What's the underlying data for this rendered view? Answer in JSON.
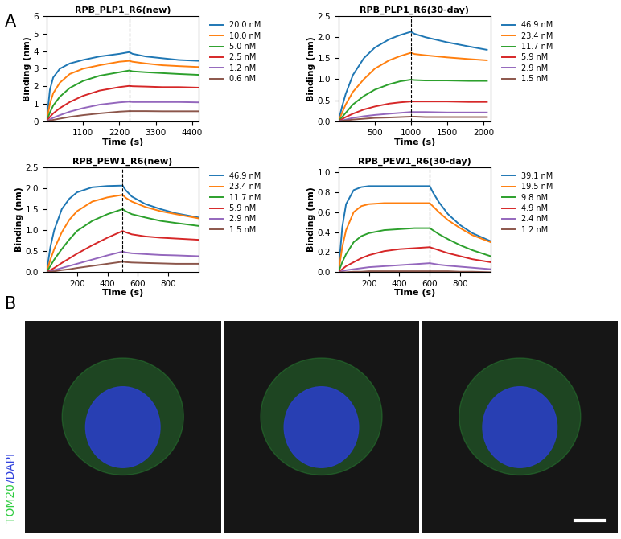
{
  "panel_labels": [
    "A",
    "B"
  ],
  "chart_data": [
    {
      "type": "line",
      "title": "RPB_PLP1_R6(new)",
      "xlabel": "Time (s)",
      "ylabel": "Binding (nm)",
      "xlim": [
        0,
        4600
      ],
      "xticks": [
        1100,
        2200,
        3300,
        4400
      ],
      "ylim": [
        0,
        6
      ],
      "yticks": [
        0,
        1,
        2,
        3,
        4,
        5,
        6
      ],
      "vline_x": 2500,
      "legend": "upper left",
      "x": [
        0,
        100,
        200,
        400,
        700,
        1100,
        1600,
        2200,
        2500,
        2600,
        3000,
        3500,
        4000,
        4600
      ],
      "series": [
        {
          "name": "20.0 nM",
          "color": "#1f77b4",
          "values": [
            0,
            1.8,
            2.5,
            3.0,
            3.3,
            3.5,
            3.7,
            3.85,
            3.95,
            3.85,
            3.7,
            3.6,
            3.5,
            3.45
          ]
        },
        {
          "name": "10.0 nM",
          "color": "#ff7f0e",
          "values": [
            0,
            1.0,
            1.6,
            2.2,
            2.7,
            3.0,
            3.2,
            3.4,
            3.45,
            3.4,
            3.3,
            3.2,
            3.15,
            3.1
          ]
        },
        {
          "name": "5.0 nM",
          "color": "#2ca02c",
          "values": [
            0,
            0.5,
            0.9,
            1.4,
            1.9,
            2.3,
            2.6,
            2.8,
            2.9,
            2.85,
            2.8,
            2.75,
            2.7,
            2.65
          ]
        },
        {
          "name": "2.5 nM",
          "color": "#d62728",
          "values": [
            0,
            0.25,
            0.45,
            0.75,
            1.1,
            1.45,
            1.75,
            1.95,
            2.02,
            2.0,
            1.98,
            1.95,
            1.95,
            1.92
          ]
        },
        {
          "name": "1.2 nM",
          "color": "#9467bd",
          "values": [
            0,
            0.1,
            0.2,
            0.35,
            0.55,
            0.75,
            0.95,
            1.08,
            1.12,
            1.1,
            1.1,
            1.1,
            1.1,
            1.08
          ]
        },
        {
          "name": "0.6 nM",
          "color": "#8c564b",
          "values": [
            0,
            0.04,
            0.08,
            0.15,
            0.25,
            0.35,
            0.45,
            0.55,
            0.58,
            0.58,
            0.58,
            0.57,
            0.57,
            0.57
          ]
        }
      ]
    },
    {
      "type": "line",
      "title": "RPB_PLP1_R6(30-day)",
      "xlabel": "Time (s)",
      "ylabel": "Binding (nm)",
      "xlim": [
        0,
        2100
      ],
      "xticks": [
        500,
        1000,
        1500,
        2000
      ],
      "ylim": [
        0,
        2.5
      ],
      "yticks": [
        {
          "value": 0,
          "label": "0.0"
        },
        0.5,
        {
          "value": 1,
          "label": "1.0"
        },
        1.5,
        {
          "value": 2,
          "label": "2.0"
        },
        2.5
      ],
      "vline_x": 1000,
      "legend": "upper left",
      "x": [
        0,
        50,
        100,
        200,
        350,
        500,
        700,
        850,
        1000,
        1050,
        1200,
        1500,
        1800,
        2050
      ],
      "series": [
        {
          "name": "46.9 nM",
          "color": "#1f77b4",
          "values": [
            0,
            0.35,
            0.65,
            1.1,
            1.5,
            1.75,
            1.95,
            2.05,
            2.13,
            2.08,
            2.0,
            1.88,
            1.78,
            1.7
          ]
        },
        {
          "name": "23.4 nM",
          "color": "#ff7f0e",
          "values": [
            0,
            0.2,
            0.4,
            0.7,
            1.0,
            1.25,
            1.45,
            1.55,
            1.63,
            1.6,
            1.57,
            1.52,
            1.48,
            1.45
          ]
        },
        {
          "name": "11.7 nM",
          "color": "#2ca02c",
          "values": [
            0,
            0.1,
            0.2,
            0.4,
            0.6,
            0.75,
            0.88,
            0.95,
            0.99,
            0.98,
            0.97,
            0.97,
            0.96,
            0.96
          ]
        },
        {
          "name": "5.9 nM",
          "color": "#d62728",
          "values": [
            0,
            0.05,
            0.1,
            0.18,
            0.28,
            0.35,
            0.42,
            0.45,
            0.47,
            0.47,
            0.47,
            0.47,
            0.46,
            0.46
          ]
        },
        {
          "name": "2.9 nM",
          "color": "#9467bd",
          "values": [
            0,
            0.02,
            0.04,
            0.08,
            0.12,
            0.15,
            0.18,
            0.2,
            0.22,
            0.22,
            0.22,
            0.21,
            0.21,
            0.21
          ]
        },
        {
          "name": "1.5 nM",
          "color": "#8c564b",
          "values": [
            0,
            0.01,
            0.02,
            0.04,
            0.06,
            0.08,
            0.09,
            0.1,
            0.11,
            0.11,
            0.1,
            0.1,
            0.1,
            0.1
          ]
        }
      ]
    },
    {
      "type": "line",
      "title": "RPB_PEW1_R6(new)",
      "xlabel": "Time (s)",
      "ylabel": "Binding (nm)",
      "xlim": [
        0,
        1000
      ],
      "xticks": [
        200,
        400,
        600,
        800
      ],
      "ylim": [
        0,
        2.5
      ],
      "yticks": [
        {
          "value": 0,
          "label": "0.0"
        },
        0.5,
        {
          "value": 1,
          "label": "1.0"
        },
        1.5,
        {
          "value": 2,
          "label": "2.0"
        },
        2.5
      ],
      "vline_x": 500,
      "legend": "upper left",
      "x": [
        0,
        25,
        50,
        100,
        150,
        200,
        300,
        400,
        500,
        520,
        560,
        650,
        750,
        850,
        1000
      ],
      "series": [
        {
          "name": "46.9 nM",
          "color": "#1f77b4",
          "values": [
            0,
            0.6,
            1.0,
            1.5,
            1.75,
            1.9,
            2.02,
            2.05,
            2.06,
            1.95,
            1.8,
            1.62,
            1.5,
            1.4,
            1.3
          ]
        },
        {
          "name": "23.4 nM",
          "color": "#ff7f0e",
          "values": [
            0,
            0.3,
            0.55,
            0.95,
            1.25,
            1.45,
            1.68,
            1.78,
            1.84,
            1.77,
            1.68,
            1.55,
            1.45,
            1.38,
            1.28
          ]
        },
        {
          "name": "11.7 nM",
          "color": "#2ca02c",
          "values": [
            0,
            0.15,
            0.3,
            0.55,
            0.78,
            0.98,
            1.22,
            1.38,
            1.5,
            1.45,
            1.38,
            1.3,
            1.22,
            1.17,
            1.1
          ]
        },
        {
          "name": "5.9 nM",
          "color": "#d62728",
          "values": [
            0,
            0.05,
            0.1,
            0.22,
            0.33,
            0.44,
            0.64,
            0.82,
            0.98,
            0.95,
            0.9,
            0.85,
            0.82,
            0.8,
            0.77
          ]
        },
        {
          "name": "2.9 nM",
          "color": "#9467bd",
          "values": [
            0,
            0.02,
            0.05,
            0.1,
            0.15,
            0.2,
            0.3,
            0.4,
            0.49,
            0.47,
            0.45,
            0.43,
            0.41,
            0.4,
            0.38
          ]
        },
        {
          "name": "1.5 nM",
          "color": "#8c564b",
          "values": [
            0,
            0.01,
            0.02,
            0.05,
            0.07,
            0.1,
            0.15,
            0.2,
            0.25,
            0.24,
            0.23,
            0.22,
            0.21,
            0.2,
            0.2
          ]
        }
      ]
    },
    {
      "type": "line",
      "title": "RPB_PEW1_R6(30-day)",
      "xlabel": "Time (s)",
      "ylabel": "Binding (nm)",
      "xlim": [
        0,
        1000
      ],
      "xticks": [
        200,
        400,
        600,
        800
      ],
      "ylim": [
        0,
        1.05
      ],
      "yticks": [
        {
          "value": 0,
          "label": "0.0"
        },
        0.2,
        0.4,
        0.6,
        0.8,
        {
          "value": 1,
          "label": "1.0"
        }
      ],
      "vline_x": 600,
      "legend": "upper left",
      "x": [
        0,
        25,
        50,
        100,
        150,
        200,
        300,
        400,
        500,
        600,
        620,
        660,
        720,
        800,
        880,
        1000
      ],
      "series": [
        {
          "name": "39.1 nM",
          "color": "#1f77b4",
          "values": [
            0,
            0.45,
            0.68,
            0.82,
            0.85,
            0.86,
            0.86,
            0.86,
            0.86,
            0.86,
            0.8,
            0.7,
            0.58,
            0.47,
            0.39,
            0.31
          ]
        },
        {
          "name": "19.5 nM",
          "color": "#ff7f0e",
          "values": [
            0,
            0.25,
            0.42,
            0.6,
            0.66,
            0.68,
            0.69,
            0.69,
            0.69,
            0.69,
            0.66,
            0.6,
            0.52,
            0.44,
            0.37,
            0.3
          ]
        },
        {
          "name": "9.8 nM",
          "color": "#2ca02c",
          "values": [
            0,
            0.1,
            0.18,
            0.3,
            0.36,
            0.39,
            0.42,
            0.43,
            0.44,
            0.44,
            0.42,
            0.38,
            0.33,
            0.27,
            0.22,
            0.16
          ]
        },
        {
          "name": "4.9 nM",
          "color": "#d62728",
          "values": [
            0,
            0.03,
            0.06,
            0.1,
            0.14,
            0.17,
            0.21,
            0.23,
            0.24,
            0.25,
            0.24,
            0.22,
            0.19,
            0.16,
            0.13,
            0.1
          ]
        },
        {
          "name": "2.4 nM",
          "color": "#9467bd",
          "values": [
            0,
            0.01,
            0.02,
            0.03,
            0.04,
            0.05,
            0.06,
            0.07,
            0.08,
            0.09,
            0.085,
            0.075,
            0.065,
            0.055,
            0.045,
            0.03
          ]
        },
        {
          "name": "1.2 nM",
          "color": "#8c564b",
          "values": [
            0,
            0,
            0,
            0.005,
            0.005,
            0.01,
            0.01,
            0.01,
            0.01,
            0.01,
            0.01,
            0.01,
            0.01,
            0.005,
            0.005,
            0
          ]
        }
      ]
    }
  ],
  "images": {
    "count": 3,
    "label_parts": [
      {
        "text": "TOM20",
        "color": "#2ecc40"
      },
      {
        "text": "/DAPI",
        "color": "#3344dd"
      }
    ]
  }
}
